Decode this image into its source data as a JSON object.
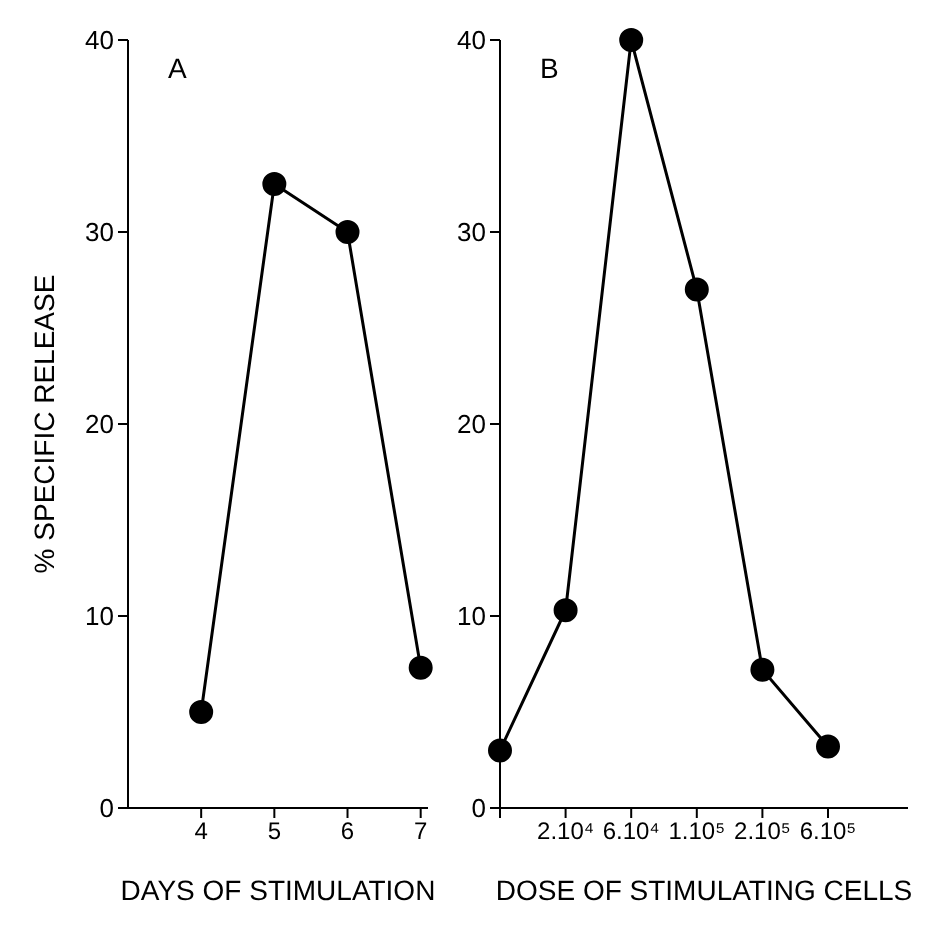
{
  "chart_data": [
    {
      "type": "line",
      "title": "A",
      "xlabel": "DAYS OF STIMULATION",
      "ylabel": "% SPECIFIC RELEASE",
      "x": [
        4,
        5,
        6,
        7
      ],
      "series": [
        {
          "color": "#000000",
          "values": [
            5,
            32.5,
            30,
            7.3
          ]
        }
      ],
      "xlim": [
        3,
        7.1
      ],
      "xticks": [
        4,
        5,
        6,
        7
      ],
      "ylim": [
        0,
        40
      ],
      "yticks": [
        0,
        10,
        20,
        30,
        40
      ],
      "marker": "circle",
      "grid": false,
      "legend": false
    },
    {
      "type": "line",
      "title": "B",
      "xlabel": "DOSE OF STIMULATING CELLS",
      "categories": [
        null,
        "2.10⁴",
        "6.10⁴",
        "1.10⁵",
        "2.10⁵",
        "6.10⁵"
      ],
      "series": [
        {
          "color": "#000000",
          "values": [
            3,
            10.3,
            40,
            27,
            7.2,
            3.2
          ]
        }
      ],
      "ylim": [
        0,
        40
      ],
      "yticks": [
        0,
        10,
        20,
        30,
        40
      ],
      "marker": "circle",
      "grid": false,
      "legend": false
    }
  ]
}
